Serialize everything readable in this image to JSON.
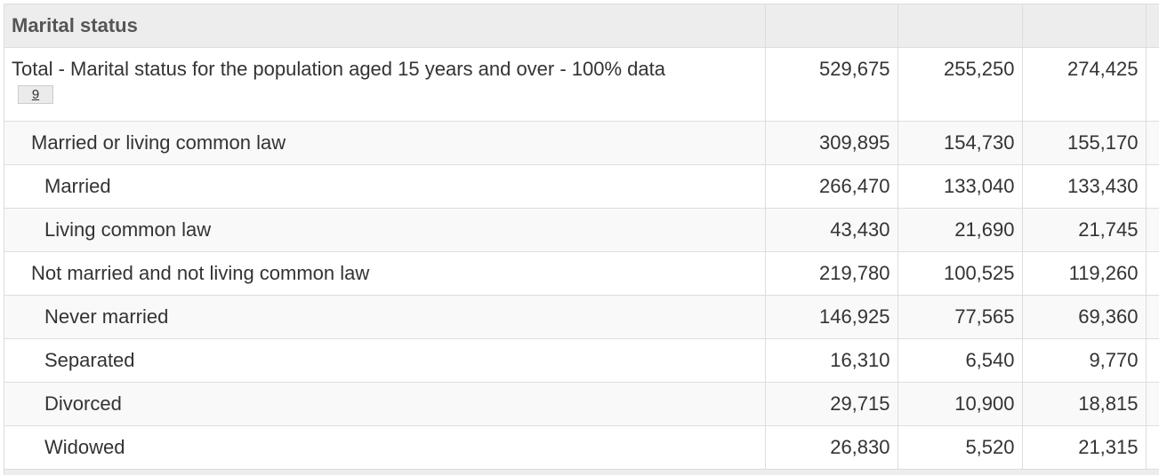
{
  "section": {
    "title": "Marital status"
  },
  "rows": [
    {
      "label": "Total - Marital status for the population aged 15 years and over - 100% data",
      "footnote": "9",
      "values": [
        "529,675",
        "255,250",
        "274,425"
      ]
    },
    {
      "label": "Married or living common law",
      "values": [
        "309,895",
        "154,730",
        "155,170"
      ]
    },
    {
      "label": "Married",
      "values": [
        "266,470",
        "133,040",
        "133,430"
      ]
    },
    {
      "label": "Living common law",
      "values": [
        "43,430",
        "21,690",
        "21,745"
      ]
    },
    {
      "label": "Not married and not living common law",
      "values": [
        "219,780",
        "100,525",
        "119,260"
      ]
    },
    {
      "label": "Never married",
      "values": [
        "146,925",
        "77,565",
        "69,360"
      ]
    },
    {
      "label": "Separated",
      "values": [
        "16,310",
        "6,540",
        "9,770"
      ]
    },
    {
      "label": "Divorced",
      "values": [
        "29,715",
        "10,900",
        "18,815"
      ]
    },
    {
      "label": "Widowed",
      "values": [
        "26,830",
        "5,520",
        "21,315"
      ]
    }
  ]
}
